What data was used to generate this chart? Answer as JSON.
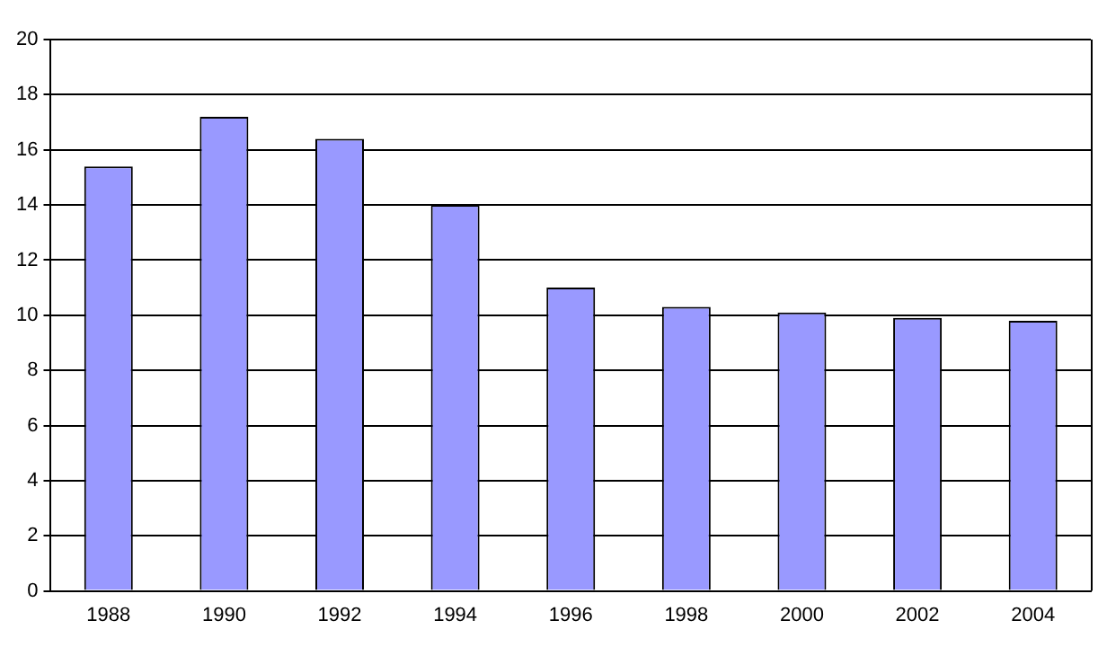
{
  "chart_data": {
    "type": "bar",
    "categories": [
      "1988",
      "1990",
      "1992",
      "1994",
      "1996",
      "1998",
      "2000",
      "2002",
      "2004"
    ],
    "values": [
      15.4,
      17.2,
      16.4,
      14.0,
      11.0,
      10.3,
      10.1,
      9.9,
      9.8
    ],
    "color": "#9999ff",
    "ylim": [
      0,
      20
    ],
    "yticks": [
      0,
      2,
      4,
      6,
      8,
      10,
      12,
      14,
      16,
      18,
      20
    ],
    "grid": "y",
    "legend": false
  }
}
